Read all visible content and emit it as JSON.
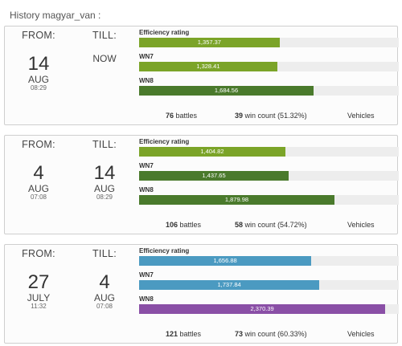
{
  "history_title": "History magyar_van :",
  "labels": {
    "from": "FROM:",
    "till": "TILL:",
    "battles_suffix": " battles",
    "wins_suffix": " win count",
    "vehicles": "Vehicles"
  },
  "colors": {
    "green_light": "#7ba428",
    "green_dark": "#4a7a2c",
    "blue": "#4b9ac1",
    "purple": "#8a4fa6",
    "track": "#ededed"
  },
  "periods": [
    {
      "from": {
        "day": "14",
        "month": "AUG",
        "time": "08:29"
      },
      "till": {
        "now": "NOW"
      },
      "metrics": [
        {
          "label": "Efficiency rating",
          "value": "1,357.37",
          "fill_percent": 54.1,
          "color": "#7ba428"
        },
        {
          "label": "WN7",
          "value": "1,328.41",
          "fill_percent": 53.2,
          "color": "#7ba428"
        },
        {
          "label": "WN8",
          "value": "1,684.56",
          "fill_percent": 67.2,
          "color": "#4a7a2c"
        }
      ],
      "battles": "76",
      "wins": "39",
      "win_pct": "(51.32%)"
    },
    {
      "from": {
        "day": "4",
        "month": "AUG",
        "time": "07:08"
      },
      "till": {
        "day": "14",
        "month": "AUG",
        "time": "08:29"
      },
      "metrics": [
        {
          "label": "Efficiency rating",
          "value": "1,404.82",
          "fill_percent": 56.3,
          "color": "#7ba428"
        },
        {
          "label": "WN7",
          "value": "1,437.65",
          "fill_percent": 57.6,
          "color": "#4a7a2c"
        },
        {
          "label": "WN8",
          "value": "1,879.98",
          "fill_percent": 75.2,
          "color": "#4a7a2c"
        }
      ],
      "battles": "106",
      "wins": "58",
      "win_pct": "(54.72%)"
    },
    {
      "from": {
        "day": "27",
        "month": "JULY",
        "time": "11:32"
      },
      "till": {
        "day": "4",
        "month": "AUG",
        "time": "07:08"
      },
      "metrics": [
        {
          "label": "Efficiency rating",
          "value": "1,656.88",
          "fill_percent": 66.3,
          "color": "#4b9ac1"
        },
        {
          "label": "WN7",
          "value": "1,737.84",
          "fill_percent": 69.4,
          "color": "#4b9ac1"
        },
        {
          "label": "WN8",
          "value": "2,370.39",
          "fill_percent": 94.8,
          "color": "#8a4fa6"
        }
      ],
      "battles": "121",
      "wins": "73",
      "win_pct": "(60.33%)"
    }
  ]
}
